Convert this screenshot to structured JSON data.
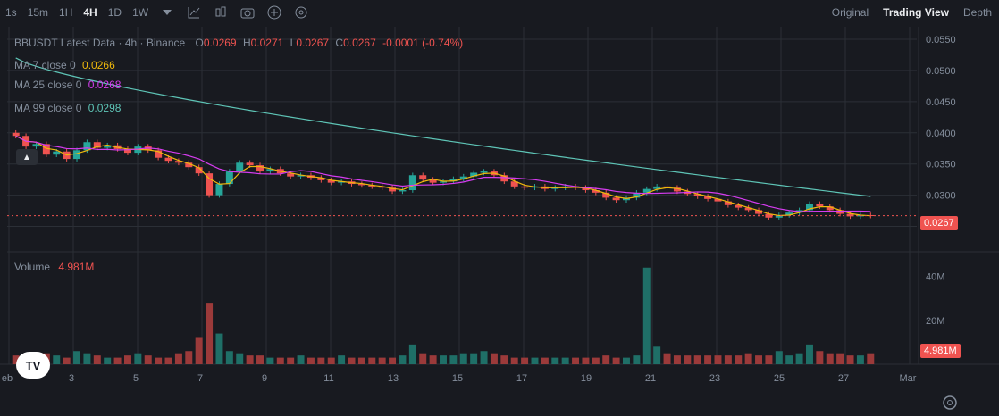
{
  "toolbar": {
    "intervals": [
      "1s",
      "15m",
      "1H",
      "4H",
      "1D",
      "1W"
    ],
    "active_interval": "4H",
    "icons": [
      "chevron-down-icon",
      "indicator-icon",
      "candle-type-icon",
      "camera-icon",
      "add-icon",
      "settings-icon"
    ]
  },
  "views": {
    "original": "Original",
    "trading_view": "Trading View",
    "depth": "Depth"
  },
  "legend": {
    "title": "BBUSDT Latest Data · 4h · Binance",
    "o_label": "O",
    "o": "0.0269",
    "h_label": "H",
    "h": "0.0271",
    "l_label": "L",
    "l": "0.0267",
    "c_label": "C",
    "c": "0.0267",
    "change": "-0.0001 (-0.74%)",
    "ma7_label": "MA 7 close 0",
    "ma7": "0.0266",
    "ma25_label": "MA 25 close 0",
    "ma25": "0.0268",
    "ma99_label": "MA 99 close 0",
    "ma99": "0.0298",
    "volume_label": "Volume",
    "volume": "4.981M"
  },
  "price_axis": {
    "ticks": [
      "0.0550",
      "0.0500",
      "0.0450",
      "0.0400",
      "0.0350",
      "0.0300",
      "0.0250"
    ],
    "last_price": "0.0267"
  },
  "volume_axis": {
    "ticks": [
      "40M",
      "20M"
    ],
    "last_volume": "4.981M"
  },
  "time_axis": {
    "ticks": [
      "eb",
      "3",
      "5",
      "7",
      "9",
      "11",
      "13",
      "15",
      "17",
      "19",
      "21",
      "23",
      "25",
      "27",
      "Mar"
    ]
  },
  "colors": {
    "up": "#26a69a",
    "down": "#ef5350",
    "ma7": "#f0b90b",
    "ma25": "#d63cf0",
    "ma99": "#5ec4b6",
    "bg": "#181a20"
  },
  "chart_data": {
    "type": "candlestick",
    "symbol": "BBUSDT",
    "interval": "4h",
    "ylim": [
      0.025,
      0.055
    ],
    "close_series": [
      0.0395,
      0.0378,
      0.0382,
      0.0365,
      0.037,
      0.0358,
      0.0372,
      0.0385,
      0.0376,
      0.038,
      0.0374,
      0.0368,
      0.0378,
      0.0372,
      0.036,
      0.0355,
      0.0352,
      0.0345,
      0.0335,
      0.03,
      0.0318,
      0.0338,
      0.0352,
      0.0348,
      0.0338,
      0.0342,
      0.0335,
      0.033,
      0.0332,
      0.0328,
      0.0324,
      0.032,
      0.0322,
      0.0318,
      0.0316,
      0.0314,
      0.0312,
      0.0306,
      0.0308,
      0.0332,
      0.0325,
      0.032,
      0.0322,
      0.0326,
      0.033,
      0.0336,
      0.0338,
      0.0332,
      0.0322,
      0.0314,
      0.0312,
      0.0314,
      0.031,
      0.0312,
      0.0314,
      0.0312,
      0.0308,
      0.0304,
      0.0296,
      0.0292,
      0.0296,
      0.0304,
      0.031,
      0.0314,
      0.0312,
      0.0306,
      0.0302,
      0.0298,
      0.0294,
      0.029,
      0.0284,
      0.028,
      0.0276,
      0.027,
      0.0264,
      0.0268,
      0.0272,
      0.0276,
      0.0286,
      0.0282,
      0.0276,
      0.027,
      0.0266,
      0.0268,
      0.0267
    ],
    "volume_series_M": [
      4,
      3,
      3,
      5,
      4,
      3,
      6,
      5,
      4,
      3,
      3,
      4,
      5,
      4,
      3,
      3,
      5,
      6,
      12,
      28,
      14,
      6,
      5,
      4,
      4,
      3,
      3,
      3,
      4,
      3,
      3,
      3,
      4,
      3,
      3,
      3,
      3,
      3,
      4,
      9,
      5,
      4,
      4,
      4,
      5,
      5,
      6,
      5,
      4,
      3,
      3,
      3,
      3,
      3,
      3,
      3,
      3,
      3,
      4,
      3,
      3,
      4,
      44,
      8,
      5,
      4,
      4,
      4,
      4,
      4,
      4,
      4,
      5,
      4,
      4,
      6,
      4,
      5,
      9,
      6,
      5,
      5,
      4,
      4,
      5
    ]
  }
}
